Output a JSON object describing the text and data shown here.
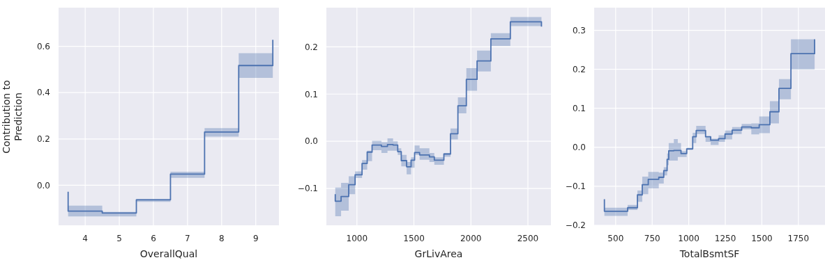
{
  "chart_data": [
    {
      "type": "step",
      "xlabel": "OverallQual",
      "ylabel": "Contribution to Prediction",
      "grid": true,
      "x": [
        3.5,
        3.5,
        4.5,
        5.5,
        6.5,
        7.5,
        8.5,
        9.5,
        9.5
      ],
      "series": [
        {
          "color": "#4c72b0",
          "values": [
            -0.028,
            -0.112,
            -0.12,
            -0.063,
            0.048,
            0.23,
            0.517,
            0.517,
            0.628
          ],
          "lower": [
            null,
            -0.135,
            -0.135,
            -0.072,
            0.032,
            0.21,
            0.464,
            0.464,
            null
          ],
          "upper": [
            null,
            -0.088,
            -0.115,
            -0.06,
            0.058,
            0.247,
            0.57,
            0.57,
            null
          ]
        }
      ],
      "xlim": [
        3.22,
        9.68
      ],
      "xticks": [
        4,
        5,
        6,
        7,
        8,
        9
      ],
      "ylim": [
        -0.173,
        0.767
      ],
      "yticks": [
        {
          "value": 0,
          "label": "0.0"
        },
        0.2,
        0.4,
        0.6
      ]
    },
    {
      "type": "step",
      "xlabel": "GrLivArea",
      "grid": true,
      "x": [
        810,
        810,
        861,
        928,
        984,
        1045,
        1090,
        1133,
        1215,
        1268,
        1317,
        1358,
        1389,
        1436,
        1475,
        1506,
        1550,
        1636,
        1679,
        1763,
        1821,
        1886,
        1960,
        2054,
        2175,
        2346,
        2619,
        2619
      ],
      "series": [
        {
          "color": "#4c72b0",
          "values": [
            -0.112,
            -0.127,
            -0.117,
            -0.092,
            -0.071,
            -0.047,
            -0.023,
            -0.008,
            -0.011,
            -0.007,
            -0.008,
            -0.022,
            -0.041,
            -0.054,
            -0.04,
            -0.024,
            -0.029,
            -0.033,
            -0.04,
            -0.027,
            0.016,
            0.075,
            0.131,
            0.17,
            0.217,
            0.253,
            0.253,
            0.243
          ],
          "lower": [
            null,
            -0.159,
            -0.147,
            -0.112,
            -0.078,
            -0.06,
            -0.042,
            -0.019,
            -0.025,
            -0.02,
            -0.02,
            -0.029,
            -0.053,
            -0.07,
            -0.056,
            -0.029,
            -0.039,
            -0.044,
            -0.05,
            -0.033,
            0.004,
            0.059,
            0.107,
            0.148,
            0.202,
            0.244,
            0.244,
            null
          ],
          "upper": [
            null,
            -0.098,
            -0.088,
            -0.074,
            -0.064,
            -0.04,
            -0.02,
            0.001,
            -0.002,
            0.006,
            0,
            -0.015,
            -0.029,
            -0.044,
            -0.034,
            -0.009,
            -0.015,
            -0.025,
            -0.034,
            -0.025,
            0.027,
            0.093,
            0.155,
            0.192,
            0.229,
            0.263,
            0.263,
            null
          ]
        }
      ],
      "xlim": [
        732,
        2702
      ],
      "xticks": [
        1000,
        1500,
        2000,
        2500
      ],
      "ylim": [
        -0.178,
        0.283
      ],
      "yticks": [
        {
          "value": -0.1,
          "label": "−0.1"
        },
        {
          "value": 0,
          "label": "0.0"
        },
        0.1,
        0.2
      ]
    },
    {
      "type": "step",
      "xlabel": "TotalBsmtSF",
      "grid": true,
      "x": [
        423,
        423,
        582,
        649,
        682,
        723,
        795,
        829,
        852,
        863,
        898,
        925,
        947,
        986,
        1027,
        1051,
        1115,
        1150,
        1204,
        1248,
        1297,
        1362,
        1428,
        1482,
        1555,
        1617,
        1699,
        1861,
        1861
      ],
      "series": [
        {
          "color": "#4c72b0",
          "values": [
            -0.133,
            -0.164,
            -0.155,
            -0.122,
            -0.096,
            -0.082,
            -0.077,
            -0.06,
            -0.031,
            -0.009,
            -0.008,
            -0.008,
            -0.016,
            -0.004,
            0.027,
            0.043,
            0.027,
            0.018,
            0.022,
            0.034,
            0.044,
            0.052,
            0.05,
            0.058,
            0.091,
            0.151,
            0.24,
            0.24,
            0.277
          ],
          "lower": [
            null,
            -0.176,
            -0.161,
            -0.14,
            -0.12,
            -0.105,
            -0.093,
            -0.072,
            -0.046,
            -0.034,
            -0.034,
            -0.025,
            -0.025,
            -0.007,
            0.011,
            0.034,
            0.014,
            0.006,
            0.014,
            0.02,
            0.034,
            0.046,
            0.033,
            0.036,
            0.061,
            0.123,
            0.2,
            0.2,
            null
          ],
          "upper": [
            null,
            -0.155,
            -0.148,
            -0.111,
            -0.075,
            -0.063,
            -0.065,
            -0.051,
            -0.016,
            0.011,
            0.021,
            0.011,
            -0.01,
            -0.001,
            0.037,
            0.055,
            0.028,
            0.022,
            0.031,
            0.043,
            0.052,
            0.06,
            0.061,
            0.079,
            0.118,
            0.175,
            0.277,
            0.277,
            null
          ]
        }
      ],
      "xlim": [
        353,
        1932
      ],
      "xticks": [
        500,
        750,
        1000,
        1250,
        1500,
        1750
      ],
      "ylim": [
        -0.2,
        0.358
      ],
      "yticks": [
        {
          "value": -0.2,
          "label": "−0.2"
        },
        {
          "value": -0.1,
          "label": "−0.1"
        },
        {
          "value": 0,
          "label": "0.0"
        },
        0.1,
        0.2,
        0.3
      ]
    }
  ]
}
